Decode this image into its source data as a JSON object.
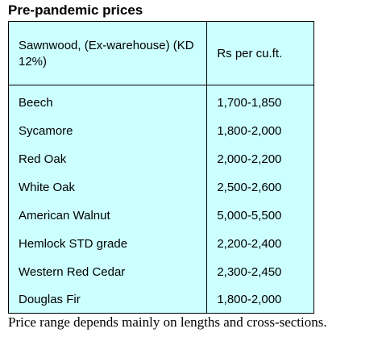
{
  "heading": "Pre-pandemic prices",
  "table": {
    "header": {
      "product": "Sawnwood, (Ex-warehouse) (KD 12%)",
      "unit": "Rs per cu.ft."
    },
    "rows": [
      {
        "product": "Beech",
        "price": "1,700-1,850"
      },
      {
        "product": "Sycamore",
        "price": "1,800-2,000"
      },
      {
        "product": "Red Oak",
        "price": "2,000-2,200"
      },
      {
        "product": "White Oak",
        "price": "2,500-2,600"
      },
      {
        "product": "American Walnut",
        "price": "5,000-5,500"
      },
      {
        "product": "Hemlock STD grade",
        "price": "2,200-2,400"
      },
      {
        "product": "Western Red Cedar",
        "price": "2,300-2,450"
      },
      {
        "product": "Douglas Fir",
        "price": "1,800-2,000"
      }
    ],
    "background_color": "#ccffff",
    "border_color": "#000000"
  },
  "footnote": "Price range depends mainly on lengths and cross-sections."
}
